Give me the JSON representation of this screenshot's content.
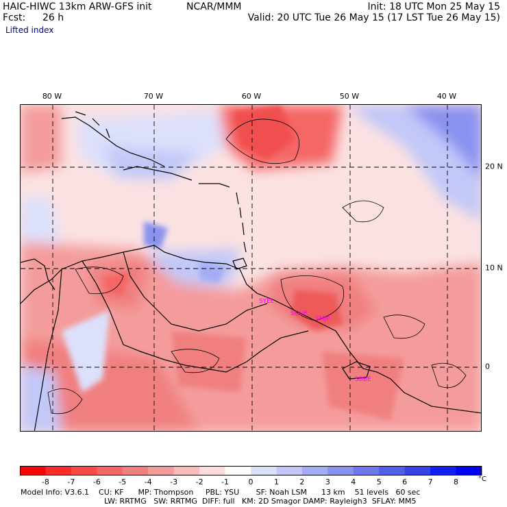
{
  "header": {
    "model_title": "HAIC-HIWC 13km ARW-GFS init",
    "org": "NCAR/MMM",
    "init": "Init: 18 UTC Mon 25 May 15",
    "fcst_label": "Fcst:",
    "fcst_value": "26 h",
    "valid": "Valid: 20 UTC Tue 26 May 15 (17 LST Tue 26 May 15)",
    "field": "Lifted index"
  },
  "map": {
    "lon_labels": [
      "80 W",
      "70 W",
      "60 W",
      "50 W",
      "40 W"
    ],
    "lat_labels": [
      "20 N",
      "10 N",
      "0"
    ],
    "stations": [
      "SYEL",
      "SOUP",
      "SMJP",
      "SBBE"
    ],
    "colors": {
      "coast": "#000000",
      "grid": "#000000",
      "station": "#ff00ff"
    }
  },
  "colorbar": {
    "labels": [
      "-8",
      "-7",
      "-6",
      "-5",
      "-4",
      "-3",
      "-2",
      "-1",
      "0",
      "1",
      "2",
      "3",
      "4",
      "5",
      "6",
      "7",
      "8"
    ],
    "unit": "°C",
    "colors": [
      "#ff0000",
      "#ff2a2a",
      "#fb4848",
      "#f56666",
      "#f08080",
      "#f49c9c",
      "#f9bcbc",
      "#fddcdc",
      "#ffffff",
      "#dde0fb",
      "#c2c8f8",
      "#a4acf4",
      "#8a92f0",
      "#6e78ec",
      "#5560ea",
      "#3744ea",
      "#1020ee",
      "#0000ff"
    ]
  },
  "footer": {
    "line1": "Model Info: V3.6.1    CU: KF      MP: Thompson     PBL: YSU       SF: Noah LSM      13 km    51 levels   60 sec",
    "line2": "LW: RRTMG   SW: RRTMG  DIFF: full   KM: 2D Smagor DAMP: Rayleigh3  SFLAY: MM5"
  }
}
